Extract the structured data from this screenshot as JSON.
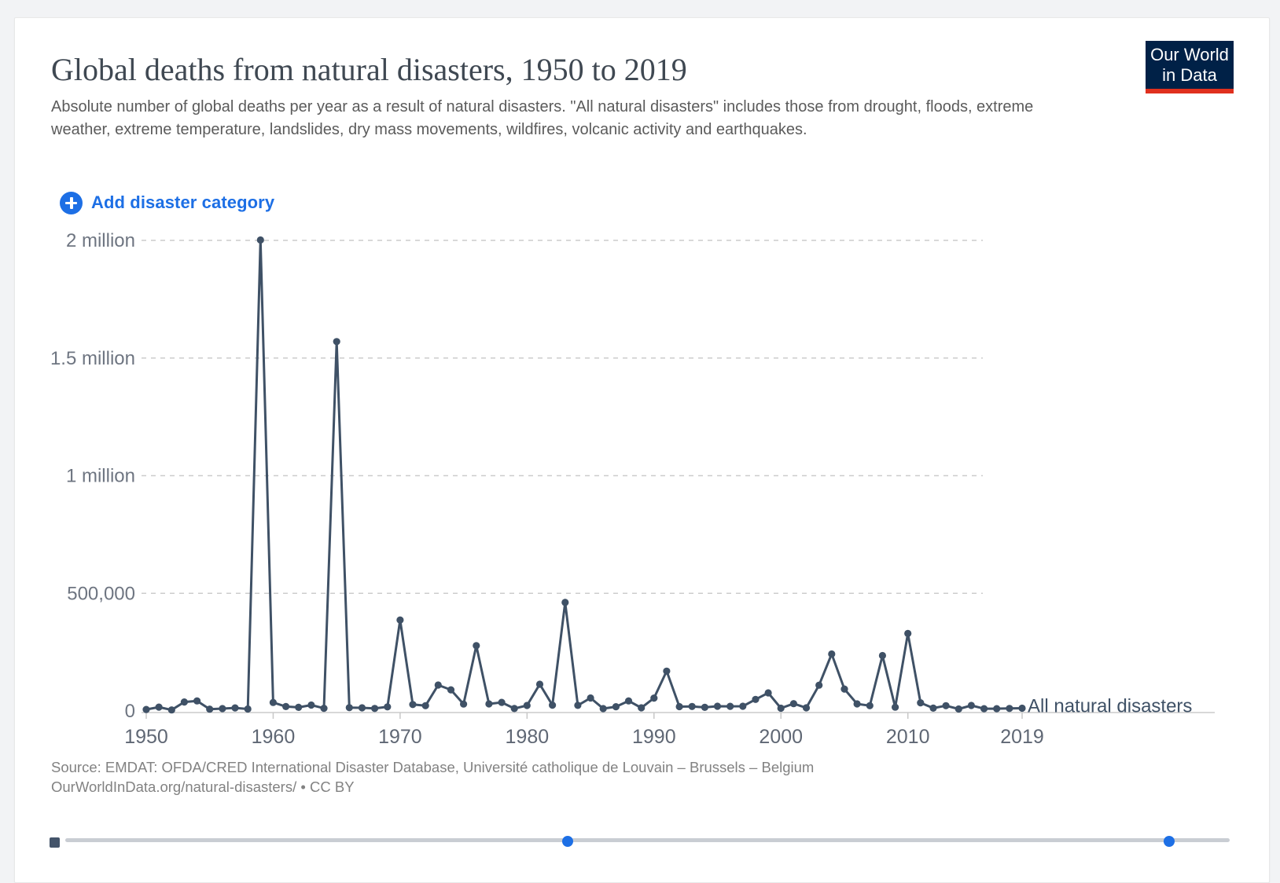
{
  "header": {
    "title": "Global deaths from natural disasters, 1950 to 2019",
    "subtitle": "Absolute number of global deaths per year as a result of natural disasters. \"All natural disasters\" includes those from drought, floods, extreme weather, extreme temperature, landslides, dry mass movements, wildfires, volcanic activity and earthquakes.",
    "logo": {
      "line1": "Our World",
      "line2": "in Data",
      "bg_color": "#002147",
      "accent_color": "#e0301e"
    }
  },
  "controls": {
    "add_button_label": "Add disaster category",
    "accent_blue": "#1d6fe5"
  },
  "footer": {
    "source_line1": "Source: EMDAT: OFDA/CRED International Disaster Database, Université catholique de Louvain – Brussels – Belgium",
    "source_line2": "OurWorldInData.org/natural-disasters/ • CC BY"
  },
  "chart_data": {
    "type": "line",
    "title": "Global deaths from natural disasters, 1950 to 2019",
    "xlabel": "",
    "ylabel": "",
    "xlim": [
      1950,
      2019
    ],
    "ylim": [
      0,
      2000000
    ],
    "grid": "horizontal-dashed",
    "legend_position": "end-of-line-label",
    "line_color": "#3f5166",
    "grid_color": "#cccccc",
    "axis_label_color": "#6e7581",
    "x_ticks": [
      {
        "value": 1950,
        "label": "1950"
      },
      {
        "value": 1960,
        "label": "1960"
      },
      {
        "value": 1970,
        "label": "1970"
      },
      {
        "value": 1980,
        "label": "1980"
      },
      {
        "value": 1990,
        "label": "1990"
      },
      {
        "value": 2000,
        "label": "2000"
      },
      {
        "value": 2010,
        "label": "2010"
      },
      {
        "value": 2019,
        "label": "2019"
      }
    ],
    "y_ticks": [
      {
        "value": 0,
        "label": "0"
      },
      {
        "value": 500000,
        "label": "500,000"
      },
      {
        "value": 1000000,
        "label": "1 million"
      },
      {
        "value": 1500000,
        "label": "1.5 million"
      },
      {
        "value": 2000000,
        "label": "2 million"
      }
    ],
    "x": [
      1950,
      1951,
      1952,
      1953,
      1954,
      1955,
      1956,
      1957,
      1958,
      1959,
      1960,
      1961,
      1962,
      1963,
      1964,
      1965,
      1966,
      1967,
      1968,
      1969,
      1970,
      1971,
      1972,
      1973,
      1974,
      1975,
      1976,
      1977,
      1978,
      1979,
      1980,
      1981,
      1982,
      1983,
      1984,
      1985,
      1986,
      1987,
      1988,
      1989,
      1990,
      1991,
      1992,
      1993,
      1994,
      1995,
      1996,
      1997,
      1998,
      1999,
      2000,
      2001,
      2002,
      2003,
      2004,
      2005,
      2006,
      2007,
      2008,
      2009,
      2010,
      2011,
      2012,
      2013,
      2014,
      2015,
      2016,
      2017,
      2018,
      2019
    ],
    "series": [
      {
        "name": "All natural disasters",
        "color": "#3f5166",
        "values": [
          6380,
          16283,
          4293,
          38178,
          42825,
          7821,
          10163,
          12932,
          8278,
          2001550,
          36087,
          18620,
          15445,
          25086,
          11509,
          1569869,
          14139,
          13261,
          10674,
          17321,
          386627,
          27388,
          22532,
          110020,
          89650,
          29299,
          277349,
          30149,
          36286,
          10370,
          23499,
          113428,
          24795,
          461182,
          23623,
          54968,
          10113,
          18021,
          42681,
          13213,
          54772,
          169379,
          18214,
          19095,
          15363,
          19954,
          19866,
          20169,
          49202,
          76848,
          11735,
          30949,
          13341,
          109637,
          242010,
          93075,
          29893,
          22237,
          235272,
          16056,
          329106,
          34660,
          11892,
          22341,
          8351,
          23539,
          9733,
          9734,
          10809,
          11755
        ]
      }
    ]
  }
}
